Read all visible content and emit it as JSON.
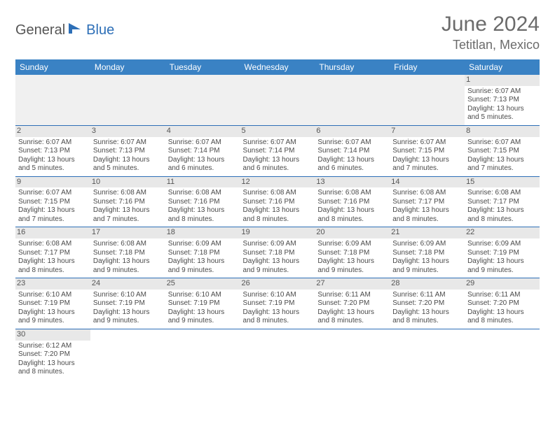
{
  "logo": {
    "general": "General",
    "blue": "Blue"
  },
  "title": "June 2024",
  "location": "Tetitlan, Mexico",
  "colors": {
    "header_bg": "#3a82c4",
    "header_text": "#ffffff",
    "daynum_bg": "#e8e8e8",
    "row_border": "#2d6fb7",
    "text": "#4a4a4a",
    "title_text": "#6b6b6b",
    "logo_general": "#555555",
    "logo_blue": "#2d6fb7"
  },
  "day_headers": [
    "Sunday",
    "Monday",
    "Tuesday",
    "Wednesday",
    "Thursday",
    "Friday",
    "Saturday"
  ],
  "weeks": [
    [
      null,
      null,
      null,
      null,
      null,
      null,
      {
        "n": "1",
        "sunrise": "Sunrise: 6:07 AM",
        "sunset": "Sunset: 7:13 PM",
        "daylight": "Daylight: 13 hours and 5 minutes."
      }
    ],
    [
      {
        "n": "2",
        "sunrise": "Sunrise: 6:07 AM",
        "sunset": "Sunset: 7:13 PM",
        "daylight": "Daylight: 13 hours and 5 minutes."
      },
      {
        "n": "3",
        "sunrise": "Sunrise: 6:07 AM",
        "sunset": "Sunset: 7:13 PM",
        "daylight": "Daylight: 13 hours and 5 minutes."
      },
      {
        "n": "4",
        "sunrise": "Sunrise: 6:07 AM",
        "sunset": "Sunset: 7:14 PM",
        "daylight": "Daylight: 13 hours and 6 minutes."
      },
      {
        "n": "5",
        "sunrise": "Sunrise: 6:07 AM",
        "sunset": "Sunset: 7:14 PM",
        "daylight": "Daylight: 13 hours and 6 minutes."
      },
      {
        "n": "6",
        "sunrise": "Sunrise: 6:07 AM",
        "sunset": "Sunset: 7:14 PM",
        "daylight": "Daylight: 13 hours and 6 minutes."
      },
      {
        "n": "7",
        "sunrise": "Sunrise: 6:07 AM",
        "sunset": "Sunset: 7:15 PM",
        "daylight": "Daylight: 13 hours and 7 minutes."
      },
      {
        "n": "8",
        "sunrise": "Sunrise: 6:07 AM",
        "sunset": "Sunset: 7:15 PM",
        "daylight": "Daylight: 13 hours and 7 minutes."
      }
    ],
    [
      {
        "n": "9",
        "sunrise": "Sunrise: 6:07 AM",
        "sunset": "Sunset: 7:15 PM",
        "daylight": "Daylight: 13 hours and 7 minutes."
      },
      {
        "n": "10",
        "sunrise": "Sunrise: 6:08 AM",
        "sunset": "Sunset: 7:16 PM",
        "daylight": "Daylight: 13 hours and 7 minutes."
      },
      {
        "n": "11",
        "sunrise": "Sunrise: 6:08 AM",
        "sunset": "Sunset: 7:16 PM",
        "daylight": "Daylight: 13 hours and 8 minutes."
      },
      {
        "n": "12",
        "sunrise": "Sunrise: 6:08 AM",
        "sunset": "Sunset: 7:16 PM",
        "daylight": "Daylight: 13 hours and 8 minutes."
      },
      {
        "n": "13",
        "sunrise": "Sunrise: 6:08 AM",
        "sunset": "Sunset: 7:16 PM",
        "daylight": "Daylight: 13 hours and 8 minutes."
      },
      {
        "n": "14",
        "sunrise": "Sunrise: 6:08 AM",
        "sunset": "Sunset: 7:17 PM",
        "daylight": "Daylight: 13 hours and 8 minutes."
      },
      {
        "n": "15",
        "sunrise": "Sunrise: 6:08 AM",
        "sunset": "Sunset: 7:17 PM",
        "daylight": "Daylight: 13 hours and 8 minutes."
      }
    ],
    [
      {
        "n": "16",
        "sunrise": "Sunrise: 6:08 AM",
        "sunset": "Sunset: 7:17 PM",
        "daylight": "Daylight: 13 hours and 8 minutes."
      },
      {
        "n": "17",
        "sunrise": "Sunrise: 6:08 AM",
        "sunset": "Sunset: 7:18 PM",
        "daylight": "Daylight: 13 hours and 9 minutes."
      },
      {
        "n": "18",
        "sunrise": "Sunrise: 6:09 AM",
        "sunset": "Sunset: 7:18 PM",
        "daylight": "Daylight: 13 hours and 9 minutes."
      },
      {
        "n": "19",
        "sunrise": "Sunrise: 6:09 AM",
        "sunset": "Sunset: 7:18 PM",
        "daylight": "Daylight: 13 hours and 9 minutes."
      },
      {
        "n": "20",
        "sunrise": "Sunrise: 6:09 AM",
        "sunset": "Sunset: 7:18 PM",
        "daylight": "Daylight: 13 hours and 9 minutes."
      },
      {
        "n": "21",
        "sunrise": "Sunrise: 6:09 AM",
        "sunset": "Sunset: 7:18 PM",
        "daylight": "Daylight: 13 hours and 9 minutes."
      },
      {
        "n": "22",
        "sunrise": "Sunrise: 6:09 AM",
        "sunset": "Sunset: 7:19 PM",
        "daylight": "Daylight: 13 hours and 9 minutes."
      }
    ],
    [
      {
        "n": "23",
        "sunrise": "Sunrise: 6:10 AM",
        "sunset": "Sunset: 7:19 PM",
        "daylight": "Daylight: 13 hours and 9 minutes."
      },
      {
        "n": "24",
        "sunrise": "Sunrise: 6:10 AM",
        "sunset": "Sunset: 7:19 PM",
        "daylight": "Daylight: 13 hours and 9 minutes."
      },
      {
        "n": "25",
        "sunrise": "Sunrise: 6:10 AM",
        "sunset": "Sunset: 7:19 PM",
        "daylight": "Daylight: 13 hours and 9 minutes."
      },
      {
        "n": "26",
        "sunrise": "Sunrise: 6:10 AM",
        "sunset": "Sunset: 7:19 PM",
        "daylight": "Daylight: 13 hours and 8 minutes."
      },
      {
        "n": "27",
        "sunrise": "Sunrise: 6:11 AM",
        "sunset": "Sunset: 7:20 PM",
        "daylight": "Daylight: 13 hours and 8 minutes."
      },
      {
        "n": "28",
        "sunrise": "Sunrise: 6:11 AM",
        "sunset": "Sunset: 7:20 PM",
        "daylight": "Daylight: 13 hours and 8 minutes."
      },
      {
        "n": "29",
        "sunrise": "Sunrise: 6:11 AM",
        "sunset": "Sunset: 7:20 PM",
        "daylight": "Daylight: 13 hours and 8 minutes."
      }
    ],
    [
      {
        "n": "30",
        "sunrise": "Sunrise: 6:12 AM",
        "sunset": "Sunset: 7:20 PM",
        "daylight": "Daylight: 13 hours and 8 minutes."
      },
      null,
      null,
      null,
      null,
      null,
      null
    ]
  ]
}
